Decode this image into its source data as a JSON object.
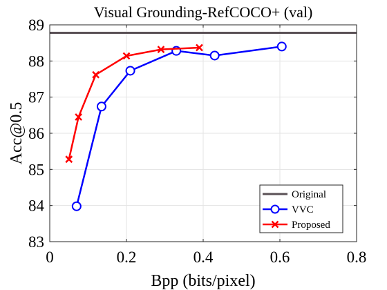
{
  "chart_data": {
    "type": "line",
    "title": "Visual Grounding-RefCOCO+ (val)",
    "xlabel": "Bpp (bits/pixel)",
    "ylabel": "Acc@0.5",
    "xlim": [
      0,
      0.8
    ],
    "ylim": [
      83,
      89
    ],
    "xticks": [
      "0",
      "0.2",
      "0.4",
      "0.6",
      "0.8"
    ],
    "yticks": [
      "83",
      "84",
      "85",
      "86",
      "87",
      "88",
      "89"
    ],
    "grid": true,
    "legend_position": "bottom-right",
    "reference_lines": [
      {
        "name": "Original",
        "y": 88.78,
        "color": "#5a5055"
      }
    ],
    "series": [
      {
        "name": "VVC",
        "color": "#0000ff",
        "marker": "circle",
        "x": [
          0.07,
          0.135,
          0.21,
          0.33,
          0.43,
          0.605
        ],
        "y": [
          83.98,
          86.74,
          87.73,
          88.28,
          88.15,
          88.4
        ]
      },
      {
        "name": "Proposed",
        "color": "#ff0000",
        "marker": "x",
        "x": [
          0.05,
          0.075,
          0.12,
          0.2,
          0.29,
          0.39
        ],
        "y": [
          85.28,
          86.45,
          87.62,
          88.14,
          88.32,
          88.37
        ]
      }
    ]
  }
}
